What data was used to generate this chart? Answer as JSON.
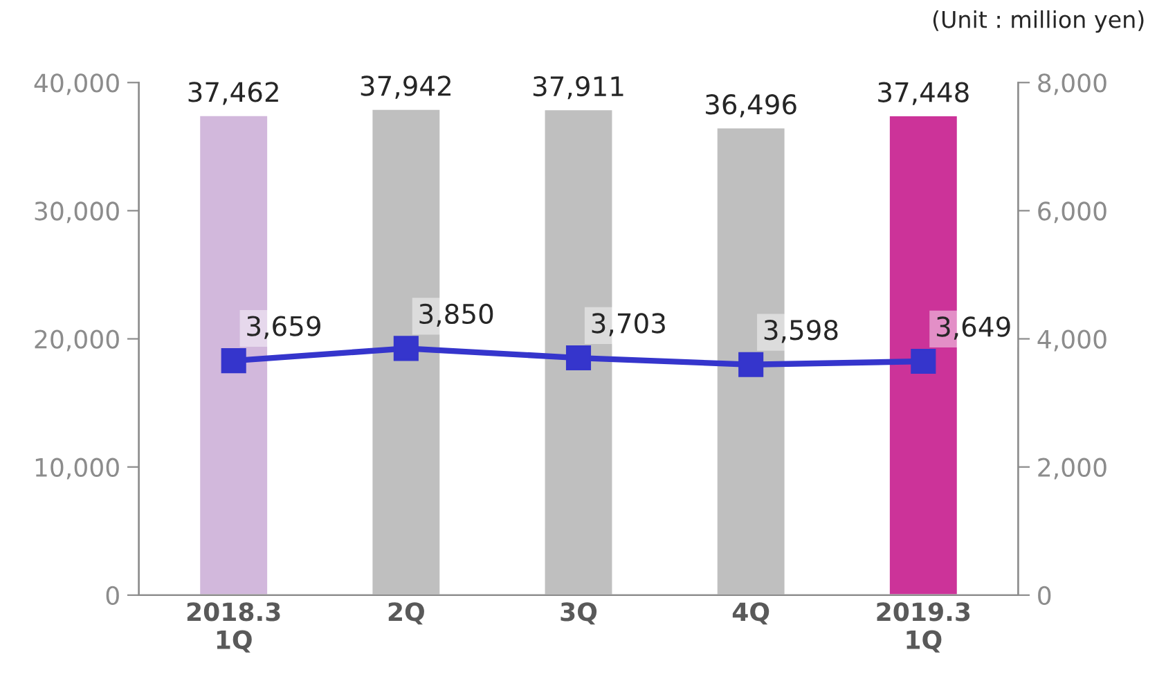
{
  "chart_data": {
    "type": "bar",
    "categories": [
      "2018.3\n1Q",
      "2Q",
      "3Q",
      "4Q",
      "2019.3\n1Q"
    ],
    "series": [
      {
        "values": [
          37462,
          37942,
          37911,
          36496,
          37448
        ],
        "value_labels": [
          "37,462",
          "37,942",
          "37,911",
          "36,496",
          "37,448"
        ],
        "colors": [
          "#d2b8dc",
          "#bfbfbf",
          "#bfbfbf",
          "#bfbfbf",
          "#cc3399"
        ]
      },
      {
        "type": "line",
        "axis": "y2",
        "color": "#3535cc",
        "values": [
          3659,
          3850,
          3703,
          3598,
          3649
        ],
        "value_labels": [
          "3,659",
          "3,850",
          "3,703",
          "3,598",
          "3,649"
        ],
        "marker": "square"
      }
    ],
    "ylim": [
      0,
      40000
    ],
    "yticks": [
      {
        "value": 0,
        "label": "0"
      },
      {
        "value": 10000,
        "label": "10,000"
      },
      {
        "value": 20000,
        "label": "20,000"
      },
      {
        "value": 30000,
        "label": "30,000"
      },
      {
        "value": 40000,
        "label": "40,000"
      }
    ],
    "y2lim": [
      0,
      8000
    ],
    "y2ticks": [
      {
        "value": 0,
        "label": "0"
      },
      {
        "value": 2000,
        "label": "2,000"
      },
      {
        "value": 4000,
        "label": "4,000"
      },
      {
        "value": 6000,
        "label": "6,000"
      },
      {
        "value": 8000,
        "label": "8,000"
      }
    ],
    "grid": false,
    "annotations": [
      "(Unit : million yen)"
    ]
  }
}
